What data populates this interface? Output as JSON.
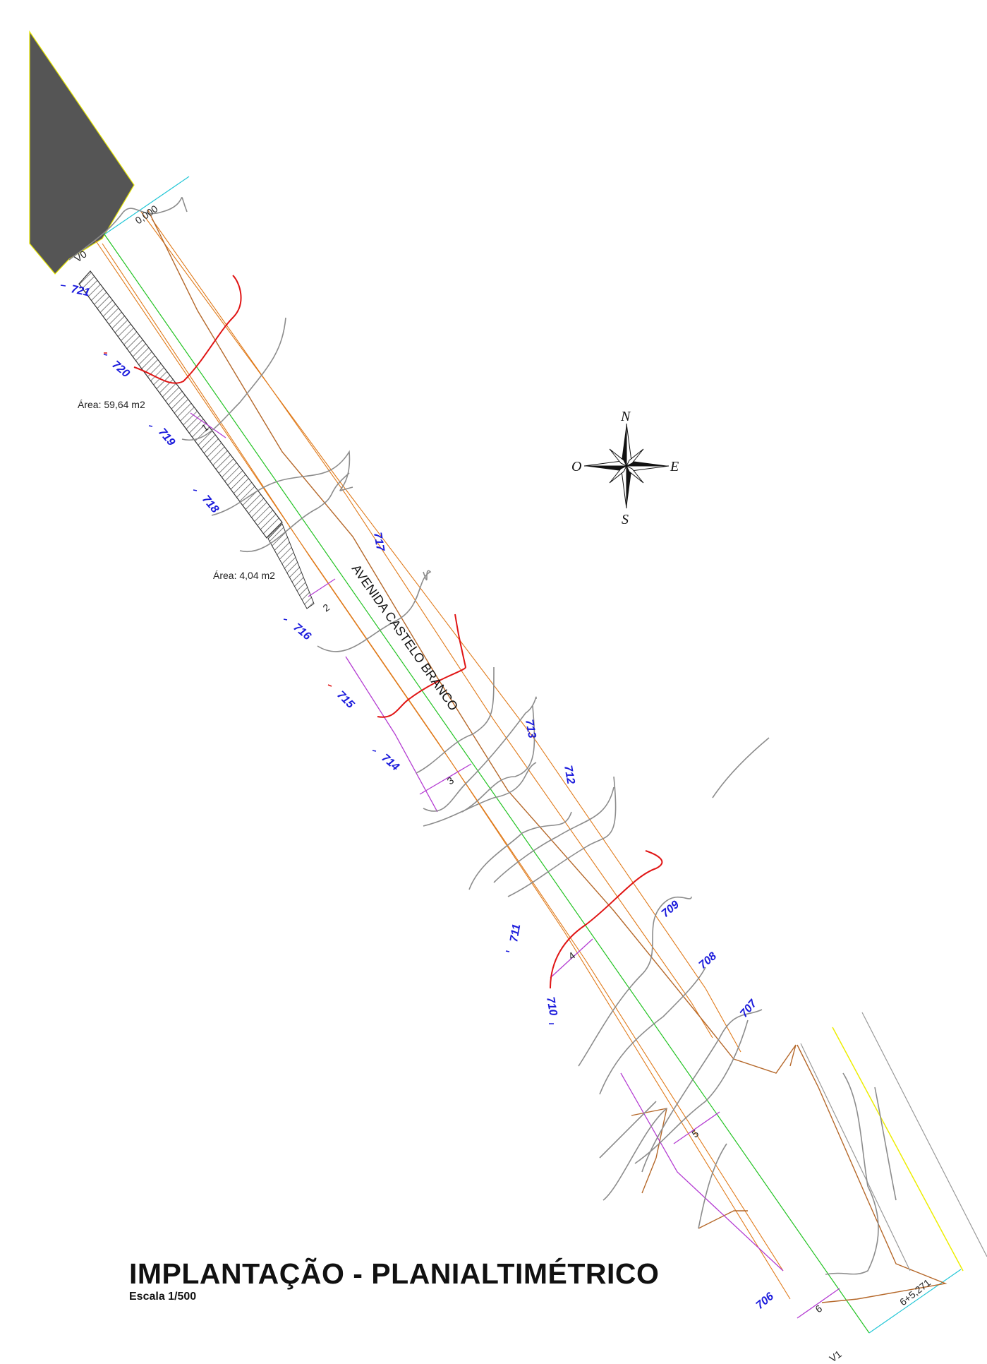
{
  "title": "IMPLANTAÇÃO - PLANIALTIMÉTRICO",
  "scale": "Escala  1/500",
  "street_name": "AVENIDA CASTELO BRANCO",
  "areas": [
    "Área:  59,64  m2",
    "Área:  4,04  m2"
  ],
  "stations": {
    "start_label": "0,000",
    "end_label": "6+5,271",
    "vertex_start": "V0",
    "vertex_end": "V1",
    "numbers": [
      "1",
      "2",
      "3",
      "4",
      "5",
      "6"
    ]
  },
  "contours": [
    "721",
    "720",
    "719",
    "718",
    "717",
    "716",
    "715",
    "714",
    "713",
    "712",
    "711",
    "710",
    "709",
    "708",
    "707",
    "706"
  ],
  "compass": {
    "north": "N",
    "south": "S",
    "east": "E",
    "west": "O"
  },
  "colors": {
    "axis": "#22c322",
    "road_edge": "#e07a1a",
    "boundary": "#b5682a",
    "contour": "#8c8c8c",
    "master_contour": "#e01515",
    "section": "#b43cd2",
    "cyan": "#21c6d6",
    "yellow": "#eded00",
    "building": "#555555",
    "contour_label": "#1a1adc"
  }
}
